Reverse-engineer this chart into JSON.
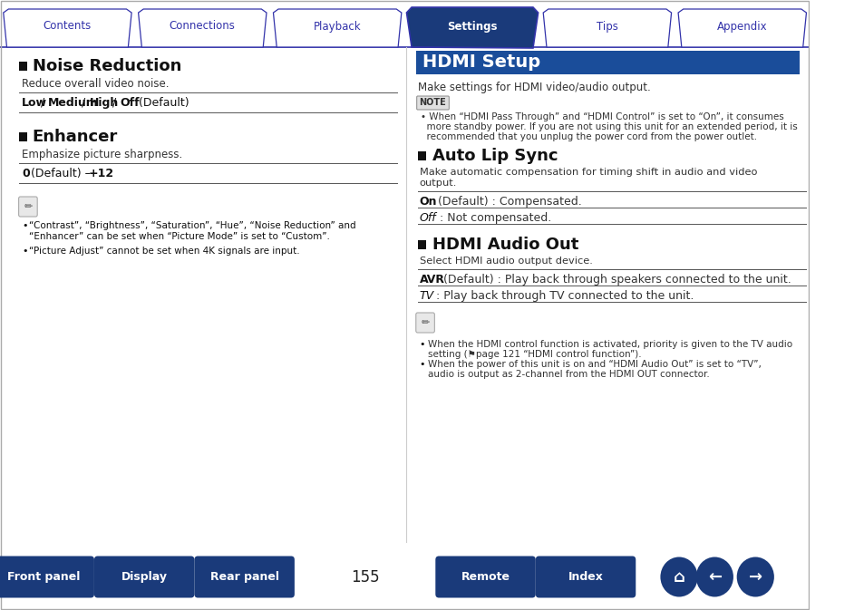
{
  "tab_labels": [
    "Contents",
    "Connections",
    "Playback",
    "Settings",
    "Tips",
    "Appendix"
  ],
  "active_tab": 3,
  "tab_color_active": "#1a3a7a",
  "tab_color_inactive": "#ffffff",
  "tab_text_active": "#ffffff",
  "tab_text_inactive": "#3333aa",
  "tab_border_color": "#3333aa",
  "header_bar_color": "#1a4d9a",
  "header_text": "HDMI Setup",
  "header_text_color": "#ffffff",
  "divider_color": "#3333aa",
  "page_bg": "#ffffff",
  "bottom_bar_color": "#1a3a7a",
  "bottom_buttons": [
    "Front panel",
    "Display",
    "Rear panel",
    "Remote",
    "Index"
  ],
  "page_number": "155",
  "left_sections": [
    {
      "title": "Noise Reduction",
      "subtitle": "Reduce overall video noise.",
      "options": "Low / Medium / High / Off (Default)",
      "options_bold": [
        "Low",
        "Medium",
        "High",
        "Off"
      ]
    },
    {
      "title": "Enhancer",
      "subtitle": "Emphasize picture sharpness.",
      "options": "0 (Default) – +12",
      "options_bold": [
        "0",
        "+12"
      ]
    }
  ],
  "left_notes": [
    "“Contrast”, “Brightness”, “Saturation”, “Hue”, “Noise Reduction” and “Enhancer” can be set when “Picture Mode” is set to “Custom”.",
    "“Picture Adjust” cannot be set when 4K signals are input."
  ],
  "right_intro": "Make settings for HDMI video/audio output.",
  "right_note_header": "NOTE",
  "right_note": "When “HDMI Pass Through” and “HDMI Control” is set to “On”, it consumes more standby power. If you are not using this unit for an extended period, it is recommended that you unplug the power cord from the power outlet.",
  "right_sections": [
    {
      "title": "Auto Lip Sync",
      "subtitle": "Make automatic compensation for timing shift in audio and video output.",
      "items": [
        {
          "label": "On",
          "bold": true,
          "rest": " (Default) : Compensated."
        },
        {
          "label": "Off",
          "bold": false,
          "rest": " : Not compensated."
        }
      ]
    },
    {
      "title": "HDMI Audio Out",
      "subtitle": "Select HDMI audio output device.",
      "items": [
        {
          "label": "AVR",
          "bold": true,
          "rest": " (Default) : Play back through speakers connected to the unit."
        },
        {
          "label": "TV",
          "bold": false,
          "rest": " : Play back through TV connected to the unit."
        }
      ]
    }
  ],
  "right_notes": [
    "When the HDMI control function is activated, priority is given to the TV audio setting (⚑page 121 “HDMI control function”).",
    "When the power of this unit is on and “HDMI Audio Out” is set to “TV”, audio is output as 2-channel from the HDMI OUT connector."
  ]
}
